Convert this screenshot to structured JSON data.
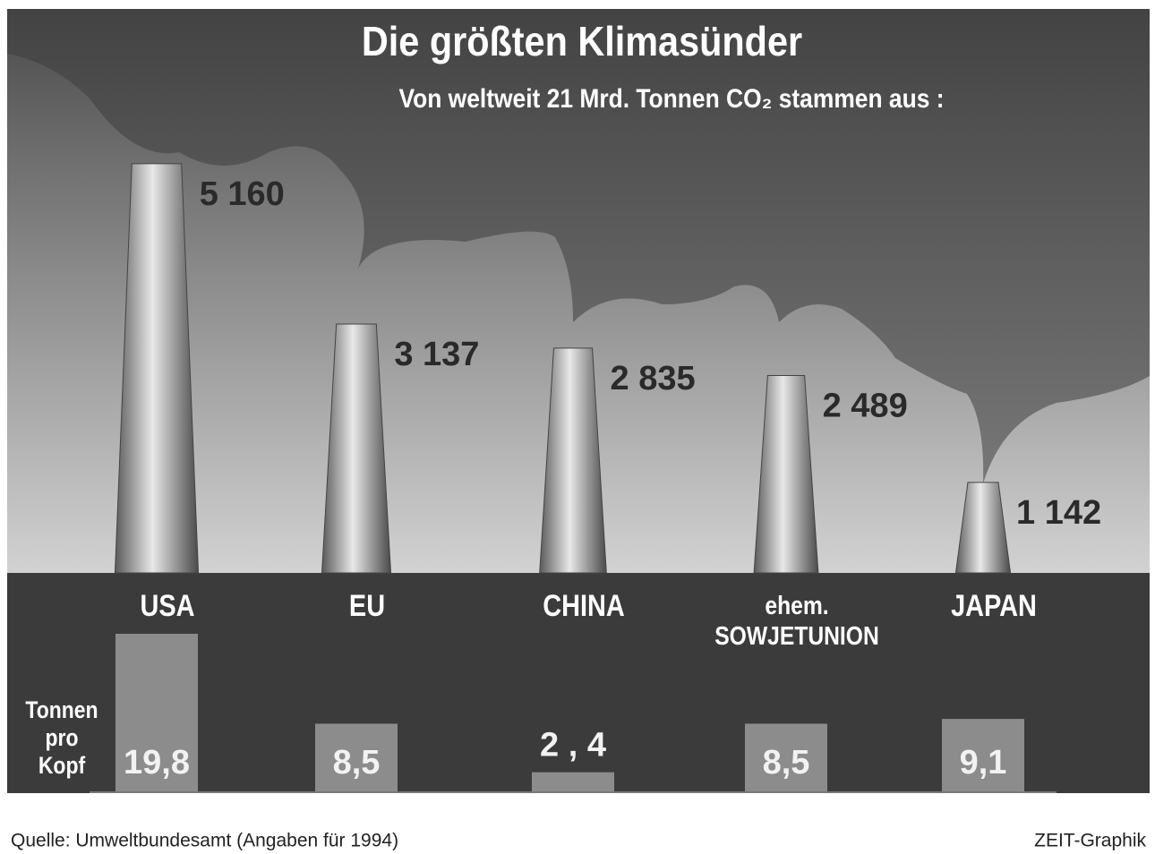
{
  "chart_data": [
    {
      "type": "chimney",
      "title": "Die größten Klimasünder",
      "subtitle": "Von weltweit  21 Mrd. Tonnen CO₂ stammen aus :",
      "categories": [
        "USA",
        "EU",
        "CHINA",
        "ehem.\nSOWJETUNION",
        "JAPAN"
      ],
      "values": [
        5160,
        3137,
        2835,
        2489,
        1142
      ],
      "value_labels": [
        "5 160",
        "3 137",
        "2 835",
        "2 489",
        "1 142"
      ],
      "color": "#9a9a9a"
    },
    {
      "type": "bar",
      "ylabel": "Tonnen\npro\nKopf",
      "values": [
        19.8,
        8.5,
        2.4,
        8.5,
        9.1
      ],
      "value_labels": [
        "19,8",
        "8,5",
        "2 , 4",
        "8,5",
        "9,1"
      ],
      "color": "#8c8c8c"
    }
  ],
  "footer": {
    "source": "Quelle: Umweltbundesamt (Angaben für 1994)",
    "credit": "ZEIT-Graphik"
  }
}
